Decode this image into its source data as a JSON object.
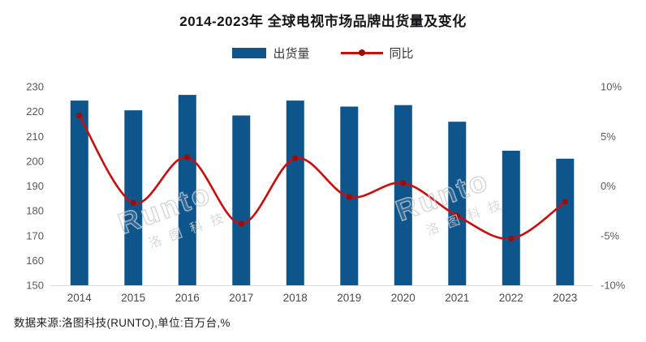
{
  "page": {
    "background": "#ffffff"
  },
  "chart": {
    "title": "2014-2023年 全球电视市场品牌出货量及变化",
    "source_note": "数据来源:洛图科技(RUNTO),单位:百万台,%"
  },
  "legend": {
    "items": [
      {
        "label": "出货量",
        "swatch": "bar",
        "color": "#0e558c"
      },
      {
        "label": "同比",
        "swatch": "line",
        "color": "#cb0d0d",
        "marker_color": "#9e0b0b"
      }
    ]
  },
  "watermark": {
    "brand": "Runto",
    "cn": "洛图科技"
  },
  "chart_data": {
    "type": "bar+line",
    "title": "2014-2023年 全球电视市场品牌出货量及变化",
    "categories": [
      "2014",
      "2015",
      "2016",
      "2017",
      "2018",
      "2019",
      "2020",
      "2021",
      "2022",
      "2023"
    ],
    "series": [
      {
        "name": "出货量",
        "type": "bar",
        "axis": "left",
        "unit": "百万台",
        "color": "#0e558c",
        "values": [
          224.4,
          220.5,
          226.7,
          218.4,
          224.4,
          222.0,
          222.6,
          215.9,
          204.2,
          201.0
        ]
      },
      {
        "name": "同比",
        "type": "line",
        "axis": "right",
        "unit": "%",
        "color": "#cb0d0d",
        "marker_color": "#9e0b0b",
        "values": [
          7.1,
          -1.7,
          2.9,
          -3.8,
          2.8,
          -1.1,
          0.3,
          -3.0,
          -5.3,
          -1.6
        ]
      }
    ],
    "left_axis": {
      "min": 150,
      "max": 230,
      "tick_step": 10,
      "tick_labels": [
        "230",
        "220",
        "210",
        "200",
        "190",
        "180",
        "170",
        "160",
        "150"
      ]
    },
    "right_axis": {
      "min": -10,
      "max": 10,
      "tick_step": 5,
      "tick_labels": [
        "10%",
        "5%",
        "0%",
        "-5%",
        "-10%"
      ]
    },
    "grid": false,
    "legend_position": "top",
    "xlabel": "",
    "ylabel": ""
  }
}
